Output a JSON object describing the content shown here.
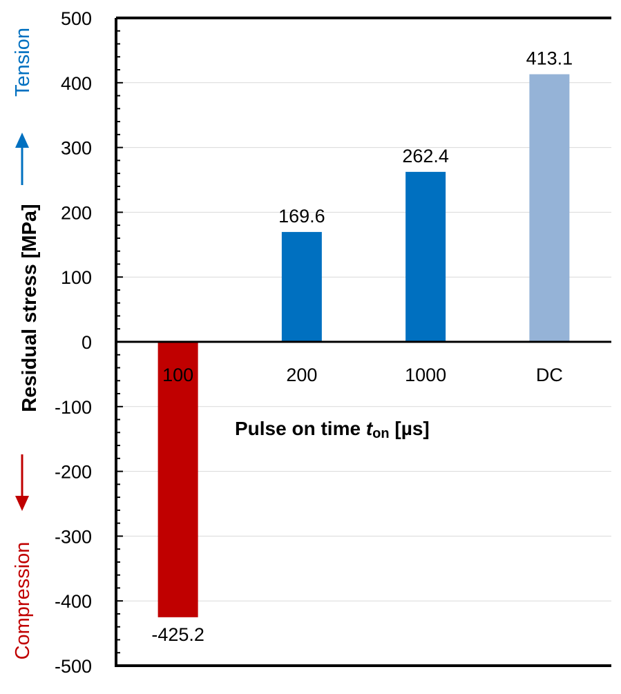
{
  "chart_data": {
    "type": "bar",
    "categories": [
      "100",
      "200",
      "1000",
      "DC"
    ],
    "values": [
      -425.2,
      169.6,
      262.4,
      413.1
    ],
    "data_labels": [
      "-425.2",
      "169.6",
      "262.4",
      "413.1"
    ],
    "bar_colors": [
      "#c00000",
      "#0070c0",
      "#0070c0",
      "#95b3d7"
    ],
    "xlabel_main": "Pulse on time ",
    "xlabel_var": "t",
    "xlabel_sub": "on",
    "xlabel_unit": " [µs]",
    "ylabel": "Residual stress [MPa]",
    "tension_label": "Tension",
    "compression_label": "Compression",
    "tension_color": "#0070c0",
    "compression_color": "#c00000",
    "ylim": [
      -500,
      500
    ],
    "yticks": [
      -500,
      -400,
      -300,
      -200,
      -100,
      0,
      100,
      200,
      300,
      400,
      500
    ],
    "grid": true
  }
}
